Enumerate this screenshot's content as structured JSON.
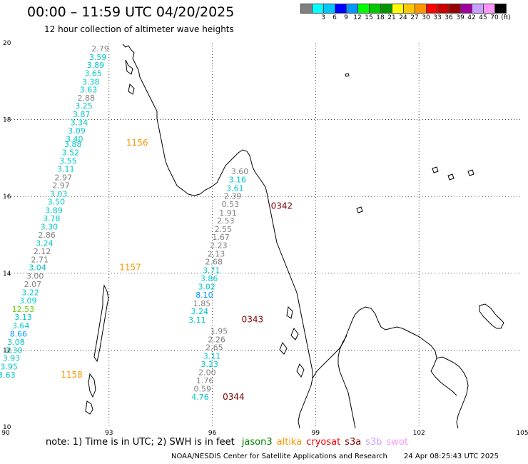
{
  "header": {
    "title": "00:00 – 11:59 UTC 04/20/2025",
    "subtitle": "12 hour collection of altimeter wave heights"
  },
  "legend": {
    "swatches": [
      {
        "color": "#808080",
        "label": ""
      },
      {
        "color": "#00ffff",
        "label": "3"
      },
      {
        "color": "#00c8ff",
        "label": "6"
      },
      {
        "color": "#0000ff",
        "label": "9"
      },
      {
        "color": "#0096ff",
        "label": "12"
      },
      {
        "color": "#00ff00",
        "label": "15"
      },
      {
        "color": "#00c800",
        "label": "18"
      },
      {
        "color": "#009600",
        "label": "21"
      },
      {
        "color": "#ffff00",
        "label": "24"
      },
      {
        "color": "#ffc800",
        "label": "27"
      },
      {
        "color": "#ff9600",
        "label": "30"
      },
      {
        "color": "#ff0000",
        "label": "33"
      },
      {
        "color": "#c80000",
        "label": "36"
      },
      {
        "color": "#960000",
        "label": "39"
      },
      {
        "color": "#a000a0",
        "label": "42"
      },
      {
        "color": "#c8a0ff",
        "label": "45"
      },
      {
        "color": "#ff96ff",
        "label": "70"
      },
      {
        "color": "#000000",
        "label": "(ft)"
      }
    ]
  },
  "axes": {
    "x_ticks": [
      "90",
      "93",
      "96",
      "99",
      "102",
      "105"
    ],
    "x_values": [
      90,
      93,
      96,
      99,
      102,
      105
    ],
    "y_ticks": [
      "20",
      "18",
      "16",
      "14",
      "12",
      "10"
    ],
    "y_values": [
      20,
      18,
      16,
      14,
      12,
      10
    ]
  },
  "map_data": {
    "extent": {
      "lon": [
        90,
        105
      ],
      "lat": [
        10,
        20
      ]
    },
    "tracks": [
      {
        "lon": 93.0,
        "points": [
          {
            "lat": 19.85,
            "v": "2.79",
            "color": "#808080"
          },
          {
            "lat": 19.63,
            "v": "3.59",
            "color": "#00c8c8"
          },
          {
            "lat": 19.42,
            "v": "3.89",
            "color": "#00c8c8"
          },
          {
            "lat": 19.21,
            "v": "3.65",
            "color": "#00c8c8"
          },
          {
            "lat": 18.99,
            "v": "3.38",
            "color": "#00c8c8"
          },
          {
            "lat": 18.78,
            "v": "3.63",
            "color": "#00c8c8"
          },
          {
            "lat": 18.57,
            "v": "2.88",
            "color": "#808080"
          },
          {
            "lat": 18.36,
            "v": "3.25",
            "color": "#00c8c8"
          },
          {
            "lat": 18.14,
            "v": "3.87",
            "color": "#00c8c8"
          },
          {
            "lat": 17.93,
            "v": "3.34",
            "color": "#00c8c8"
          },
          {
            "lat": 17.71,
            "v": "3.09",
            "color": "#00c8c8"
          },
          {
            "lat": 17.5,
            "v": "3.40",
            "color": "#00c8c8"
          },
          {
            "lat": 17.36,
            "v": "3.88",
            "color": "#00c8c8"
          },
          {
            "lat": 17.15,
            "v": "3.52",
            "color": "#00c8c8"
          },
          {
            "lat": 16.93,
            "v": "3.55",
            "color": "#00c8c8"
          },
          {
            "lat": 16.72,
            "v": "3.11",
            "color": "#00c8c8"
          },
          {
            "lat": 16.5,
            "v": "2.97",
            "color": "#808080"
          },
          {
            "lat": 16.29,
            "v": "2.97",
            "color": "#808080"
          },
          {
            "lat": 16.07,
            "v": "3.03",
            "color": "#00c8c8"
          },
          {
            "lat": 15.86,
            "v": "3.50",
            "color": "#00c8c8"
          },
          {
            "lat": 15.64,
            "v": "3.89",
            "color": "#00c8c8"
          },
          {
            "lat": 15.43,
            "v": "3.78",
            "color": "#00c8c8"
          },
          {
            "lat": 15.21,
            "v": "3.30",
            "color": "#00c8c8"
          },
          {
            "lat": 15.0,
            "v": "2.86",
            "color": "#808080"
          },
          {
            "lat": 14.79,
            "v": "3.24",
            "color": "#00c8c8"
          },
          {
            "lat": 14.57,
            "v": "2.12",
            "color": "#808080"
          },
          {
            "lat": 14.36,
            "v": "2.71",
            "color": "#808080"
          },
          {
            "lat": 14.15,
            "v": "3.04",
            "color": "#00c8c8"
          },
          {
            "lat": 13.93,
            "v": "3.00",
            "color": "#808080"
          },
          {
            "lat": 13.72,
            "v": "2.07",
            "color": "#808080"
          },
          {
            "lat": 13.5,
            "v": "3.22",
            "color": "#00c8c8"
          },
          {
            "lat": 13.29,
            "v": "3.09",
            "color": "#00c8c8"
          },
          {
            "lat": 13.07,
            "v": "12.53",
            "color": "#66cc00"
          },
          {
            "lat": 12.86,
            "v": "3.13",
            "color": "#00c8c8"
          },
          {
            "lat": 12.64,
            "v": "3.64",
            "color": "#00c8c8"
          },
          {
            "lat": 12.43,
            "v": "8.66",
            "color": "#0096ff"
          },
          {
            "lat": 12.21,
            "v": "3.08",
            "color": "#00c8c8"
          },
          {
            "lat": 12.0,
            "v": "3.30",
            "color": "#00c8c8"
          },
          {
            "lat": 11.79,
            "v": "3.93",
            "color": "#00c8c8"
          },
          {
            "lat": 11.57,
            "v": "3.95",
            "color": "#00c8c8"
          },
          {
            "lat": 11.36,
            "v": "3.63",
            "color": "#00c8c8"
          }
        ]
      },
      {
        "lon": 97.05,
        "points": [
          {
            "lat": 16.65,
            "v": "3.60",
            "color": "#808080"
          },
          {
            "lat": 16.44,
            "v": "3.16",
            "color": "#00c8c8"
          },
          {
            "lat": 16.22,
            "v": "3.61",
            "color": "#00c8c8"
          },
          {
            "lat": 16.01,
            "v": "2.39",
            "color": "#808080"
          },
          {
            "lat": 15.8,
            "v": "0.53",
            "color": "#808080"
          },
          {
            "lat": 15.58,
            "v": "1.91",
            "color": "#808080"
          },
          {
            "lat": 15.37,
            "v": "2.53",
            "color": "#808080"
          },
          {
            "lat": 15.15,
            "v": "2.55",
            "color": "#808080"
          },
          {
            "lat": 14.94,
            "v": "1.67",
            "color": "#808080"
          },
          {
            "lat": 14.73,
            "v": "2.23",
            "color": "#808080"
          },
          {
            "lat": 14.51,
            "v": "2.13",
            "color": "#808080"
          },
          {
            "lat": 14.3,
            "v": "2.68",
            "color": "#808080"
          },
          {
            "lat": 14.08,
            "v": "3.71",
            "color": "#00c8c8"
          },
          {
            "lat": 13.87,
            "v": "3.86",
            "color": "#00c8c8"
          },
          {
            "lat": 13.65,
            "v": "3.02",
            "color": "#00c8c8"
          },
          {
            "lat": 13.44,
            "v": "8.10",
            "color": "#0096ff"
          },
          {
            "lat": 13.22,
            "v": "1.85",
            "color": "#808080"
          },
          {
            "lat": 13.01,
            "v": "3.24",
            "color": "#00c8c8"
          },
          {
            "lat": 12.79,
            "v": "3.11",
            "color": "#00c8c8"
          }
        ]
      },
      {
        "lon": 96.45,
        "points": [
          {
            "lat": 12.5,
            "v": "1.95",
            "color": "#808080"
          },
          {
            "lat": 12.28,
            "v": "2.26",
            "color": "#808080"
          },
          {
            "lat": 12.07,
            "v": "2.65",
            "color": "#808080"
          },
          {
            "lat": 11.85,
            "v": "3.11",
            "color": "#00c8c8"
          },
          {
            "lat": 11.64,
            "v": "3.23",
            "color": "#00c8c8"
          },
          {
            "lat": 11.42,
            "v": "2.00",
            "color": "#808080"
          },
          {
            "lat": 11.21,
            "v": "1.76",
            "color": "#808080"
          },
          {
            "lat": 10.99,
            "v": "0.59",
            "color": "#808080"
          },
          {
            "lat": 10.78,
            "v": "4.76",
            "color": "#00c8c8"
          }
        ]
      }
    ],
    "time_labels": [
      {
        "text": "1156",
        "lon": 93.5,
        "lat": 17.4,
        "color": "#ff9600"
      },
      {
        "text": "1157",
        "lon": 93.3,
        "lat": 14.15,
        "color": "#ff9600"
      },
      {
        "text": "1158",
        "lon": 91.6,
        "lat": 11.36,
        "color": "#ff9600"
      },
      {
        "text": "0342",
        "lon": 97.7,
        "lat": 15.75,
        "color": "#800000"
      },
      {
        "text": "0343",
        "lon": 96.85,
        "lat": 12.8,
        "color": "#800000"
      },
      {
        "text": "0344",
        "lon": 96.3,
        "lat": 10.78,
        "color": "#800000"
      }
    ]
  },
  "note": {
    "prefix": "note: 1) Time is in UTC; 2) SWH is in feet",
    "satellites": [
      {
        "name": "jason3",
        "color": "#008000"
      },
      {
        "name": "altika",
        "color": "#ff9600"
      },
      {
        "name": "cryosat",
        "color": "#ff0000"
      },
      {
        "name": "s3a",
        "color": "#800000"
      },
      {
        "name": "s3b",
        "color": "#c8a0ff"
      },
      {
        "name": "swot",
        "color": "#ff96ff"
      }
    ]
  },
  "footer": {
    "credit": "NOAA/NESDIS Center for Satellite Applications and Research",
    "date": "24 Apr 08:25:43 UTC 2025"
  }
}
